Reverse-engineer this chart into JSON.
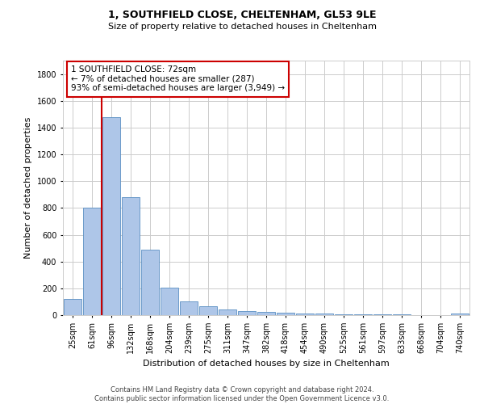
{
  "title": "1, SOUTHFIELD CLOSE, CHELTENHAM, GL53 9LE",
  "subtitle": "Size of property relative to detached houses in Cheltenham",
  "xlabel": "Distribution of detached houses by size in Cheltenham",
  "ylabel": "Number of detached properties",
  "footer_line1": "Contains HM Land Registry data © Crown copyright and database right 2024.",
  "footer_line2": "Contains public sector information licensed under the Open Government Licence v3.0.",
  "categories": [
    "25sqm",
    "61sqm",
    "96sqm",
    "132sqm",
    "168sqm",
    "204sqm",
    "239sqm",
    "275sqm",
    "311sqm",
    "347sqm",
    "382sqm",
    "418sqm",
    "454sqm",
    "490sqm",
    "525sqm",
    "561sqm",
    "597sqm",
    "633sqm",
    "668sqm",
    "704sqm",
    "740sqm"
  ],
  "values": [
    120,
    800,
    1480,
    880,
    490,
    205,
    100,
    65,
    45,
    30,
    25,
    20,
    15,
    10,
    8,
    6,
    5,
    4,
    3,
    2,
    15
  ],
  "bar_color": "#aec6e8",
  "bar_edge_color": "#5a8fc2",
  "grid_color": "#cccccc",
  "background_color": "#ffffff",
  "annotation_title": "1 SOUTHFIELD CLOSE: 72sqm",
  "annotation_line1": "← 7% of detached houses are smaller (287)",
  "annotation_line2": "93% of semi-detached houses are larger (3,949) →",
  "annotation_box_color": "#ffffff",
  "annotation_box_edge": "#cc0000",
  "red_line_color": "#cc0000",
  "red_line_x": 1.5,
  "ylim": [
    0,
    1900
  ],
  "yticks": [
    0,
    200,
    400,
    600,
    800,
    1000,
    1200,
    1400,
    1600,
    1800
  ],
  "title_fontsize": 9,
  "subtitle_fontsize": 8,
  "ylabel_fontsize": 8,
  "xlabel_fontsize": 8,
  "tick_fontsize": 7,
  "footer_fontsize": 6,
  "ann_fontsize": 7.5
}
